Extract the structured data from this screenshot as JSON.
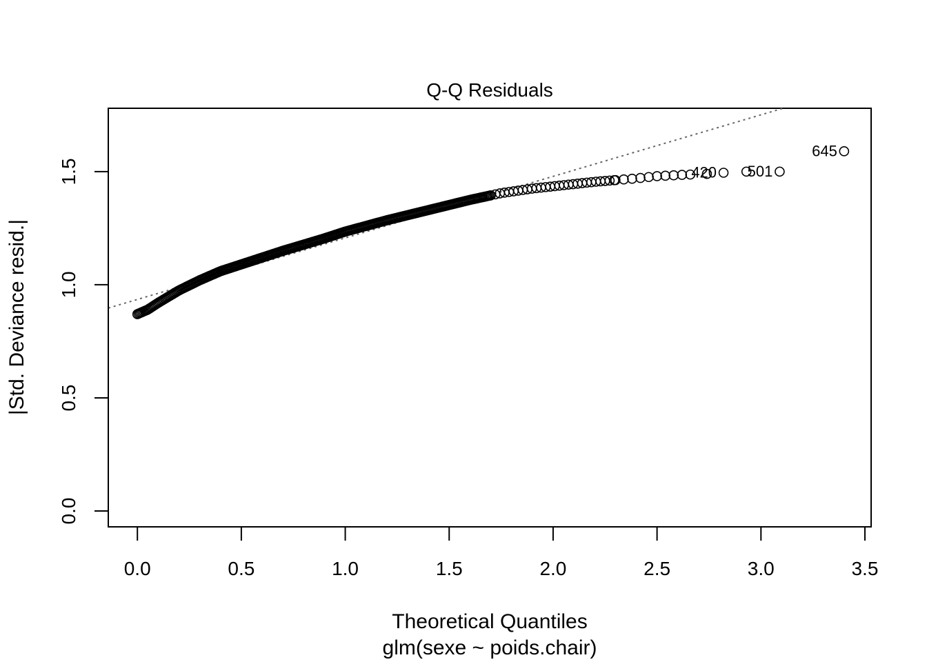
{
  "chart_data": {
    "type": "scatter",
    "title": "Q-Q Residuals",
    "xlabel": "Theoretical Quantiles",
    "xlabel_sub": "glm(sexe ~ poids.chair)",
    "ylabel": "|Std. Deviance resid.|",
    "xlim": [
      -0.14,
      3.53
    ],
    "ylim": [
      -0.07,
      1.78
    ],
    "x_ticks": [
      0.0,
      0.5,
      1.0,
      1.5,
      2.0,
      2.5,
      3.0,
      3.5
    ],
    "x_tick_labels": [
      "0.0",
      "0.5",
      "1.0",
      "1.5",
      "2.0",
      "2.5",
      "3.0",
      "3.5"
    ],
    "y_ticks": [
      0.0,
      0.5,
      1.0,
      1.5
    ],
    "y_tick_labels": [
      "0.0",
      "0.5",
      "1.0",
      "1.5"
    ],
    "grid": false,
    "reference_line": {
      "style": "dotted",
      "color": "#666666",
      "points": [
        [
          0.0,
          0.935
        ],
        [
          2.5,
          1.615
        ]
      ]
    },
    "curve_anchors": [
      [
        0.0,
        0.87
      ],
      [
        0.05,
        0.89
      ],
      [
        0.1,
        0.92
      ],
      [
        0.2,
        0.975
      ],
      [
        0.3,
        1.02
      ],
      [
        0.4,
        1.06
      ],
      [
        0.5,
        1.09
      ],
      [
        0.7,
        1.15
      ],
      [
        0.9,
        1.205
      ],
      [
        1.0,
        1.235
      ],
      [
        1.2,
        1.285
      ],
      [
        1.4,
        1.33
      ],
      [
        1.6,
        1.375
      ],
      [
        1.75,
        1.405
      ],
      [
        1.9,
        1.425
      ],
      [
        2.0,
        1.435
      ],
      [
        2.2,
        1.455
      ],
      [
        2.4,
        1.47
      ],
      [
        2.5,
        1.48
      ],
      [
        2.65,
        1.487
      ]
    ],
    "tail_points": [
      [
        2.74,
        1.49
      ],
      [
        2.82,
        1.495
      ],
      [
        2.93,
        1.5
      ],
      [
        3.09,
        1.5
      ],
      [
        3.4,
        1.59
      ]
    ],
    "labeled_points": [
      {
        "label": "645",
        "x": 3.4,
        "y": 1.59
      },
      {
        "label": "501",
        "x": 3.09,
        "y": 1.5
      },
      {
        "label": "420",
        "x": 2.82,
        "y": 1.495
      }
    ]
  }
}
